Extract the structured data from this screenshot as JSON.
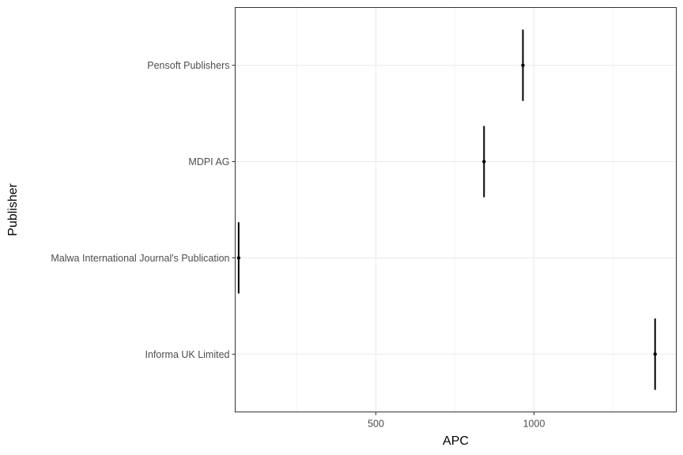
{
  "chart_data": {
    "type": "pointrange",
    "xlabel": "APC",
    "ylabel": "Publisher",
    "x_ticks": [
      500,
      1000
    ],
    "xlim": [
      55,
      1450
    ],
    "categories": [
      "Informa UK Limited",
      "Malwa International Journal's Publication",
      "MDPI AG",
      "Pensoft Publishers"
    ],
    "series": [
      {
        "points": [
          {
            "category": "Pensoft Publishers",
            "x": 965,
            "ymin_offset": 0.37,
            "ymax_offset": 0.37
          },
          {
            "category": "MDPI AG",
            "x": 842,
            "ymin_offset": 0.37,
            "ymax_offset": 0.37
          },
          {
            "category": "Malwa International Journal's Publication",
            "x": 66,
            "ymin_offset": 0.37,
            "ymax_offset": 0.37
          },
          {
            "category": "Informa UK Limited",
            "x": 1383,
            "ymin_offset": 0.37,
            "ymax_offset": 0.37
          }
        ]
      }
    ],
    "grid": true,
    "theme": "bw",
    "colors": {
      "point": "#000000",
      "range": "#000000",
      "grid": "#ebebeb",
      "panel_border": "#333333",
      "tick_text": "#4d4d4d",
      "axis_title": "#000000"
    }
  }
}
